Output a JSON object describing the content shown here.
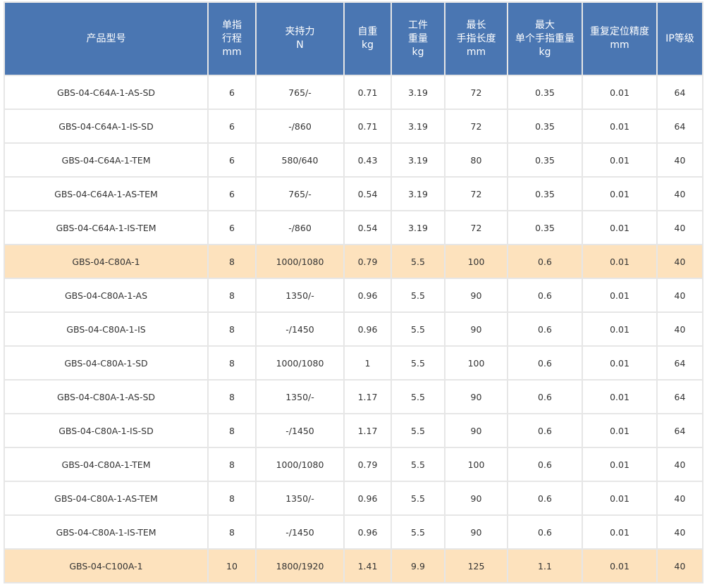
{
  "table": {
    "header": [
      [
        "产品型号"
      ],
      [
        "单指",
        "行程",
        "mm"
      ],
      [
        "夹持力",
        "N"
      ],
      [
        "自重",
        "kg"
      ],
      [
        "工件",
        "重量",
        "kg"
      ],
      [
        "最长",
        "手指长度",
        "mm"
      ],
      [
        "最大",
        "单个手指重量",
        "kg"
      ],
      [
        "重复定位精度",
        "mm"
      ],
      [
        "IP等级"
      ]
    ],
    "rows": [
      [
        "GBS-04-C64A-1-AS-SD",
        "6",
        "765/-",
        "0.71",
        "3.19",
        "72",
        "0.35",
        "0.01",
        "64"
      ],
      [
        "GBS-04-C64A-1-IS-SD",
        "6",
        "-/860",
        "0.71",
        "3.19",
        "72",
        "0.35",
        "0.01",
        "64"
      ],
      [
        "GBS-04-C64A-1-TEM",
        "6",
        "580/640",
        "0.43",
        "3.19",
        "80",
        "0.35",
        "0.01",
        "40"
      ],
      [
        "GBS-04-C64A-1-AS-TEM",
        "6",
        "765/-",
        "0.54",
        "3.19",
        "72",
        "0.35",
        "0.01",
        "40"
      ],
      [
        "GBS-04-C64A-1-IS-TEM",
        "6",
        "-/860",
        "0.54",
        "3.19",
        "72",
        "0.35",
        "0.01",
        "40"
      ],
      [
        "GBS-04-C80A-1",
        "8",
        "1000/1080",
        "0.79",
        "5.5",
        "100",
        "0.6",
        "0.01",
        "40"
      ],
      [
        "GBS-04-C80A-1-AS",
        "8",
        "1350/-",
        "0.96",
        "5.5",
        "90",
        "0.6",
        "0.01",
        "40"
      ],
      [
        "GBS-04-C80A-1-IS",
        "8",
        "-/1450",
        "0.96",
        "5.5",
        "90",
        "0.6",
        "0.01",
        "40"
      ],
      [
        "GBS-04-C80A-1-SD",
        "8",
        "1000/1080",
        "1",
        "5.5",
        "100",
        "0.6",
        "0.01",
        "64"
      ],
      [
        "GBS-04-C80A-1-AS-SD",
        "8",
        "1350/-",
        "1.17",
        "5.5",
        "90",
        "0.6",
        "0.01",
        "64"
      ],
      [
        "GBS-04-C80A-1-IS-SD",
        "8",
        "-/1450",
        "1.17",
        "5.5",
        "90",
        "0.6",
        "0.01",
        "64"
      ],
      [
        "GBS-04-C80A-1-TEM",
        "8",
        "1000/1080",
        "0.79",
        "5.5",
        "100",
        "0.6",
        "0.01",
        "40"
      ],
      [
        "GBS-04-C80A-1-AS-TEM",
        "8",
        "1350/-",
        "0.96",
        "5.5",
        "90",
        "0.6",
        "0.01",
        "40"
      ],
      [
        "GBS-04-C80A-1-IS-TEM",
        "8",
        "-/1450",
        "0.96",
        "5.5",
        "90",
        "0.6",
        "0.01",
        "40"
      ],
      [
        "GBS-04-C100A-1",
        "10",
        "1800/1920",
        "1.41",
        "9.9",
        "125",
        "1.1",
        "0.01",
        "40"
      ]
    ],
    "highlighted_rows": [
      5,
      14
    ]
  }
}
